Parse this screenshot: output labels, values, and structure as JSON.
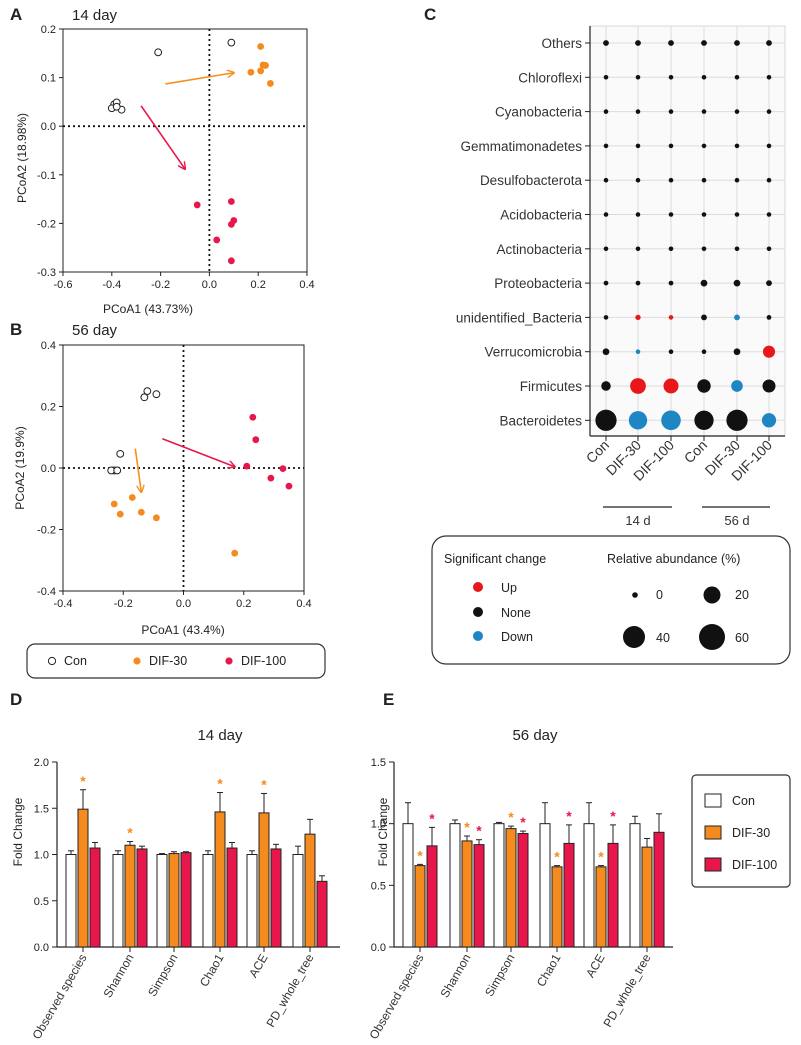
{
  "colors": {
    "con": "#222222",
    "dif30": "#f58a1f",
    "dif100": "#e8174b",
    "up": "#e8171b",
    "none": "#111111",
    "down": "#1f86c4",
    "arrow30": "#f5901e",
    "arrow100": "#e8174b"
  },
  "chart_data": [
    {
      "panel": "A",
      "type": "scatter",
      "title": "14 day",
      "xlabel": "PCoA1 (43.73%)",
      "ylabel": "PCoA2 (18.98%)",
      "xlim": [
        -0.6,
        0.4
      ],
      "ylim": [
        -0.3,
        0.2
      ],
      "xticks": [
        "-0.6",
        "-0.4",
        "-0.2",
        "0.0",
        "0.2",
        "0.4"
      ],
      "yticks": [
        "0.2",
        "0.1",
        "0.0",
        "-0.1",
        "-0.2",
        "-0.3"
      ],
      "xtick_values": [
        -0.6,
        -0.4,
        -0.2,
        0,
        0.2,
        0.4
      ],
      "ytick_values": [
        0.2,
        0.1,
        0,
        -0.1,
        -0.2,
        -0.3
      ],
      "series": [
        {
          "name": "Con",
          "key": "con",
          "points": [
            [
              -0.21,
              0.152
            ],
            [
              0.09,
              0.172
            ],
            [
              -0.39,
              0.045
            ],
            [
              -0.38,
              0.049
            ],
            [
              -0.4,
              0.037
            ],
            [
              -0.36,
              0.034
            ],
            [
              -0.38,
              0.04
            ]
          ]
        },
        {
          "name": "DIF-30",
          "key": "dif30",
          "points": [
            [
              0.21,
              0.164
            ],
            [
              0.22,
              0.126
            ],
            [
              0.23,
              0.125
            ],
            [
              0.17,
              0.111
            ],
            [
              0.21,
              0.114
            ],
            [
              0.25,
              0.088
            ]
          ]
        },
        {
          "name": "DIF-100",
          "key": "dif100",
          "points": [
            [
              -0.05,
              -0.162
            ],
            [
              0.09,
              -0.155
            ],
            [
              0.1,
              -0.194
            ],
            [
              0.09,
              -0.202
            ],
            [
              0.03,
              -0.234
            ],
            [
              0.09,
              -0.277
            ]
          ]
        }
      ],
      "arrows": [
        {
          "key": "arrow30",
          "from": [
            -0.18,
            0.087
          ],
          "to": [
            0.1,
            0.11
          ]
        },
        {
          "key": "arrow100",
          "from": [
            -0.28,
            0.042
          ],
          "to": [
            -0.1,
            -0.088
          ]
        }
      ]
    },
    {
      "panel": "B",
      "type": "scatter",
      "title": "56 day",
      "xlabel": "PCoA1 (43.4%)",
      "ylabel": "PCoA2 (19.9%)",
      "xlim": [
        -0.4,
        0.4
      ],
      "ylim": [
        -0.4,
        0.4
      ],
      "xticks": [
        "-0.4",
        "-0.2",
        "0.0",
        "0.2",
        "0.4"
      ],
      "yticks": [
        "0.4",
        "0.2",
        "0.0",
        "-0.2",
        "-0.4"
      ],
      "xtick_values": [
        -0.4,
        -0.2,
        0,
        0.2,
        0.4
      ],
      "ytick_values": [
        0.4,
        0.2,
        0,
        -0.2,
        -0.4
      ],
      "series": [
        {
          "name": "Con",
          "key": "con",
          "points": [
            [
              -0.12,
              0.25
            ],
            [
              -0.13,
              0.23
            ],
            [
              -0.09,
              0.24
            ],
            [
              -0.21,
              0.046
            ],
            [
              -0.23,
              -0.008
            ],
            [
              -0.24,
              -0.008
            ],
            [
              -0.22,
              -0.008
            ]
          ]
        },
        {
          "name": "DIF-30",
          "key": "dif30",
          "points": [
            [
              -0.17,
              -0.096
            ],
            [
              -0.23,
              -0.117
            ],
            [
              -0.21,
              -0.15
            ],
            [
              -0.14,
              -0.144
            ],
            [
              -0.09,
              -0.162
            ],
            [
              0.17,
              -0.277
            ]
          ]
        },
        {
          "name": "DIF-100",
          "key": "dif100",
          "points": [
            [
              0.23,
              0.165
            ],
            [
              0.24,
              0.092
            ],
            [
              0.21,
              0.006
            ],
            [
              0.33,
              -0.002
            ],
            [
              0.29,
              -0.033
            ],
            [
              0.35,
              -0.059
            ]
          ]
        }
      ],
      "arrows": [
        {
          "key": "arrow30",
          "from": [
            -0.16,
            0.063
          ],
          "to": [
            -0.14,
            -0.078
          ]
        },
        {
          "key": "arrow100",
          "from": [
            -0.07,
            0.095
          ],
          "to": [
            0.17,
            0.004
          ]
        }
      ]
    },
    {
      "panel": "C",
      "type": "bubble",
      "taxa": [
        "Others",
        "Chloroflexi",
        "Cyanobacteria",
        "Gemmatimonadetes",
        "Desulfobacterota",
        "Acidobacteria",
        "Actinobacteria",
        "Proteobacteria",
        "unidentified_Bacteria",
        "Verrucomicrobia",
        "Firmicutes",
        "Bacteroidetes"
      ],
      "groups": [
        "Con",
        "DIF-30",
        "DIF-100",
        "Con",
        "DIF-30",
        "DIF-100"
      ],
      "time_labels": [
        "14 d",
        "56 d"
      ],
      "abundance": [
        [
          3,
          3,
          3,
          3,
          3,
          3
        ],
        [
          0.2,
          0.2,
          0.2,
          0.2,
          0.2,
          0.2
        ],
        [
          0.2,
          0.2,
          0.2,
          0.2,
          0.2,
          0.2
        ],
        [
          0.2,
          0.2,
          0.2,
          0.2,
          0.2,
          0.2
        ],
        [
          0.8,
          0.5,
          0.5,
          1.5,
          0.8,
          0.5
        ],
        [
          0.2,
          0.2,
          0.2,
          0.2,
          0.2,
          0.2
        ],
        [
          0.8,
          0.8,
          0.8,
          0.8,
          0.8,
          0.8
        ],
        [
          2,
          2,
          2,
          4,
          4,
          3
        ],
        [
          1,
          2.5,
          1.5,
          3,
          3,
          2
        ],
        [
          4,
          0.5,
          1.5,
          1.5,
          4,
          13
        ],
        [
          8,
          22,
          20,
          16,
          12,
          15
        ],
        [
          40,
          30,
          34,
          33,
          40,
          18
        ]
      ],
      "change": [
        [
          "none",
          "none",
          "none",
          "none",
          "none",
          "none"
        ],
        [
          "none",
          "none",
          "none",
          "none",
          "none",
          "none"
        ],
        [
          "none",
          "none",
          "none",
          "none",
          "none",
          "none"
        ],
        [
          "none",
          "none",
          "none",
          "none",
          "none",
          "none"
        ],
        [
          "none",
          "none",
          "none",
          "none",
          "none",
          "none"
        ],
        [
          "none",
          "none",
          "none",
          "none",
          "none",
          "none"
        ],
        [
          "none",
          "none",
          "none",
          "none",
          "none",
          "none"
        ],
        [
          "none",
          "none",
          "none",
          "none",
          "none",
          "none"
        ],
        [
          "none",
          "up",
          "up",
          "none",
          "down",
          "none"
        ],
        [
          "none",
          "down",
          "none",
          "none",
          "none",
          "up"
        ],
        [
          "none",
          "up",
          "up",
          "none",
          "down",
          "none"
        ],
        [
          "none",
          "down",
          "down",
          "none",
          "none",
          "down"
        ]
      ],
      "legend": {
        "change_title": "Significant change",
        "change_items": [
          {
            "label": "Up",
            "key": "up"
          },
          {
            "label": "None",
            "key": "none"
          },
          {
            "label": "Down",
            "key": "down"
          }
        ],
        "size_title": "Relative abundance (%)",
        "size_items": [
          {
            "label": "0",
            "value": 0.3
          },
          {
            "label": "20",
            "value": 20
          },
          {
            "label": "40",
            "value": 40
          },
          {
            "label": "60",
            "value": 60
          }
        ]
      }
    },
    {
      "panel": "D",
      "type": "bar",
      "title": "14 day",
      "ylabel": "Fold Change",
      "ylim": [
        0,
        2.0
      ],
      "yticks": [
        "0.0",
        "0.5",
        "1.0",
        "1.5",
        "2.0"
      ],
      "ytick_values": [
        0,
        0.5,
        1.0,
        1.5,
        2.0
      ],
      "categories": [
        "Observed species",
        "Shannon",
        "Simpson",
        "Chao1",
        "ACE",
        "PD_whole_tree"
      ],
      "series": [
        {
          "name": "Con",
          "key": "con",
          "values": [
            1.0,
            1.0,
            1.0,
            1.0,
            1.0,
            1.0
          ],
          "errors": [
            0.04,
            0.04,
            0.01,
            0.04,
            0.04,
            0.09
          ],
          "sig": [
            false,
            false,
            false,
            false,
            false,
            false
          ]
        },
        {
          "name": "DIF-30",
          "key": "dif30",
          "values": [
            1.49,
            1.1,
            1.01,
            1.46,
            1.45,
            1.22
          ],
          "errors": [
            0.21,
            0.04,
            0.02,
            0.21,
            0.21,
            0.16
          ],
          "sig": [
            true,
            true,
            false,
            true,
            true,
            false
          ]
        },
        {
          "name": "DIF-100",
          "key": "dif100",
          "values": [
            1.07,
            1.06,
            1.02,
            1.07,
            1.06,
            0.71
          ],
          "errors": [
            0.06,
            0.03,
            0.01,
            0.06,
            0.05,
            0.06
          ],
          "sig": [
            false,
            false,
            false,
            false,
            false,
            false
          ]
        }
      ],
      "sig_symbol": "*"
    },
    {
      "panel": "E",
      "type": "bar",
      "title": "56 day",
      "ylabel": "Fold Change",
      "ylim": [
        0,
        1.5
      ],
      "yticks": [
        "0.0",
        "0.5",
        "1.0",
        "1.5"
      ],
      "ytick_values": [
        0,
        0.5,
        1.0,
        1.5
      ],
      "categories": [
        "Observed species",
        "Shannon",
        "Simpson",
        "Chao1",
        "ACE",
        "PD_whole_tree"
      ],
      "series": [
        {
          "name": "Con",
          "key": "con",
          "values": [
            1.0,
            1.0,
            1.0,
            1.0,
            1.0,
            1.0
          ],
          "errors": [
            0.17,
            0.03,
            0.01,
            0.17,
            0.17,
            0.06
          ],
          "sig": [
            false,
            false,
            false,
            false,
            false,
            false
          ]
        },
        {
          "name": "DIF-30",
          "key": "dif30",
          "values": [
            0.66,
            0.86,
            0.96,
            0.65,
            0.65,
            0.81
          ],
          "errors": [
            0.01,
            0.04,
            0.02,
            0.01,
            0.01,
            0.07
          ],
          "sig": [
            true,
            true,
            true,
            true,
            true,
            false
          ]
        },
        {
          "name": "DIF-100",
          "key": "dif100",
          "values": [
            0.82,
            0.83,
            0.92,
            0.84,
            0.84,
            0.93
          ],
          "errors": [
            0.15,
            0.04,
            0.02,
            0.15,
            0.15,
            0.15
          ],
          "sig": [
            true,
            true,
            true,
            true,
            true,
            false
          ]
        }
      ],
      "sig_symbol": "*"
    }
  ],
  "legend_ab": {
    "items": [
      {
        "label": "Con",
        "key": "con"
      },
      {
        "label": "DIF-30",
        "key": "dif30"
      },
      {
        "label": "DIF-100",
        "key": "dif100"
      }
    ]
  },
  "legend_de": {
    "items": [
      {
        "label": "Con",
        "key": "con"
      },
      {
        "label": "DIF-30",
        "key": "dif30"
      },
      {
        "label": "DIF-100",
        "key": "dif100"
      }
    ]
  }
}
